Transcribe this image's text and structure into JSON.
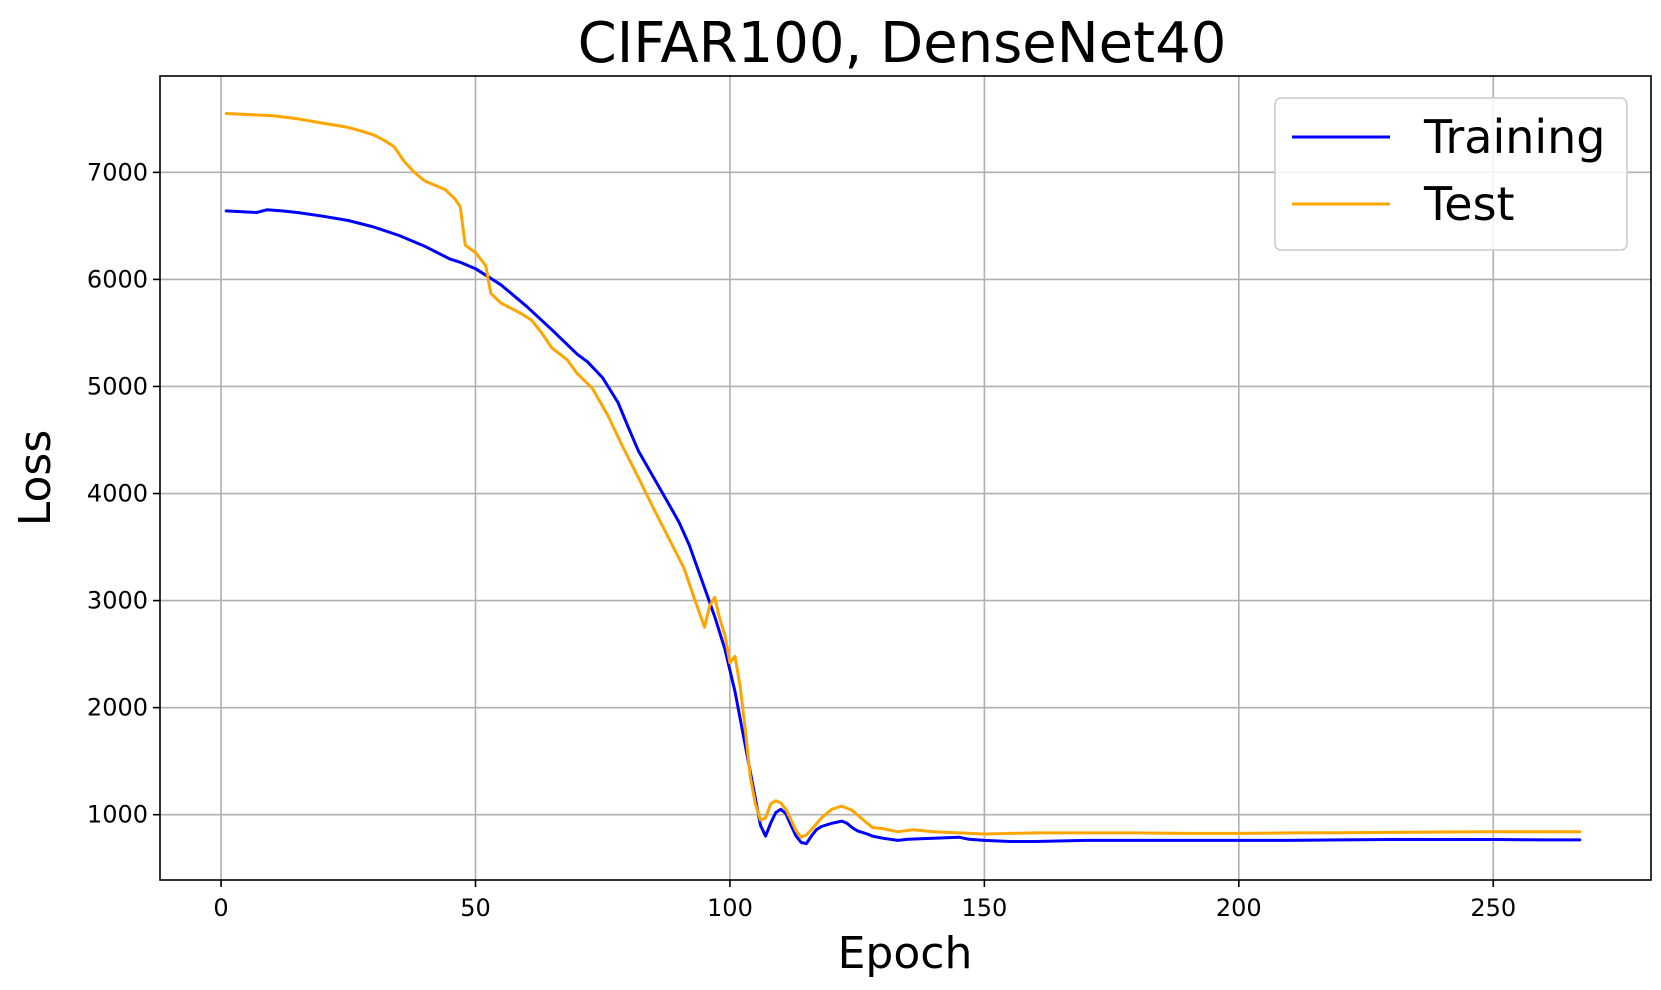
{
  "chart_data": {
    "type": "line",
    "title": "CIFAR100, DenseNet40",
    "xlabel": "Epoch",
    "ylabel": "Loss",
    "xlim": [
      -12,
      281
    ],
    "ylim": [
      390,
      7900
    ],
    "xticks": [
      0,
      50,
      100,
      150,
      200,
      250
    ],
    "yticks": [
      1000,
      2000,
      3000,
      4000,
      5000,
      6000,
      7000
    ],
    "grid": true,
    "legend_position": "top-right",
    "series": [
      {
        "name": "Training",
        "color": "#0000ff",
        "x": [
          1,
          5,
          7,
          9,
          12,
          15,
          20,
          25,
          30,
          35,
          40,
          45,
          47,
          50,
          55,
          60,
          65,
          70,
          72,
          75,
          78,
          80,
          82,
          85,
          88,
          90,
          92,
          95,
          97,
          99,
          101,
          103,
          105,
          106,
          107,
          108,
          109,
          110,
          111,
          112,
          113,
          114,
          115,
          116,
          117,
          118,
          120,
          122,
          123,
          124,
          125,
          127,
          128,
          130,
          133,
          135,
          140,
          145,
          147,
          150,
          155,
          160,
          170,
          180,
          190,
          200,
          210,
          220,
          230,
          240,
          250,
          260,
          267
        ],
        "y": [
          6640,
          6630,
          6625,
          6650,
          6640,
          6625,
          6590,
          6550,
          6490,
          6410,
          6310,
          6190,
          6160,
          6100,
          5950,
          5750,
          5530,
          5300,
          5230,
          5080,
          4850,
          4620,
          4400,
          4150,
          3900,
          3730,
          3520,
          3120,
          2850,
          2550,
          2150,
          1650,
          1150,
          900,
          800,
          920,
          1020,
          1050,
          1010,
          900,
          800,
          740,
          730,
          800,
          860,
          890,
          920,
          940,
          920,
          880,
          850,
          820,
          800,
          780,
          760,
          770,
          780,
          790,
          770,
          760,
          750,
          750,
          760,
          760,
          760,
          760,
          760,
          765,
          768,
          768,
          768,
          765,
          765
        ]
      },
      {
        "name": "Test",
        "color": "#ffa500",
        "x": [
          1,
          5,
          10,
          15,
          20,
          25,
          28,
          30,
          32,
          34,
          36,
          38,
          40,
          42,
          44,
          46,
          47,
          48,
          50,
          52,
          53,
          55,
          57,
          59,
          61,
          63,
          65,
          68,
          70,
          73,
          76,
          79,
          82,
          85,
          88,
          91,
          93,
          95,
          96,
          97,
          98,
          99,
          100,
          101,
          102,
          103,
          104,
          105,
          106,
          107,
          108,
          109,
          110,
          111,
          112,
          113,
          114,
          115,
          116,
          118,
          120,
          122,
          124,
          126,
          128,
          130,
          133,
          136,
          140,
          145,
          150,
          160,
          170,
          180,
          190,
          200,
          210,
          220,
          230,
          240,
          250,
          260,
          267
        ],
        "y": [
          7550,
          7540,
          7530,
          7500,
          7460,
          7420,
          7380,
          7350,
          7300,
          7240,
          7100,
          7000,
          6920,
          6880,
          6840,
          6750,
          6680,
          6320,
          6250,
          6130,
          5870,
          5780,
          5730,
          5680,
          5620,
          5500,
          5360,
          5250,
          5120,
          4980,
          4730,
          4430,
          4150,
          3860,
          3580,
          3300,
          3020,
          2750,
          2950,
          3030,
          2830,
          2680,
          2420,
          2480,
          2200,
          1800,
          1350,
          1100,
          950,
          970,
          1100,
          1130,
          1110,
          1050,
          950,
          850,
          790,
          810,
          860,
          970,
          1050,
          1080,
          1040,
          960,
          880,
          870,
          840,
          860,
          840,
          830,
          820,
          830,
          830,
          830,
          825,
          825,
          830,
          832,
          835,
          838,
          840,
          840,
          840
        ]
      }
    ]
  }
}
